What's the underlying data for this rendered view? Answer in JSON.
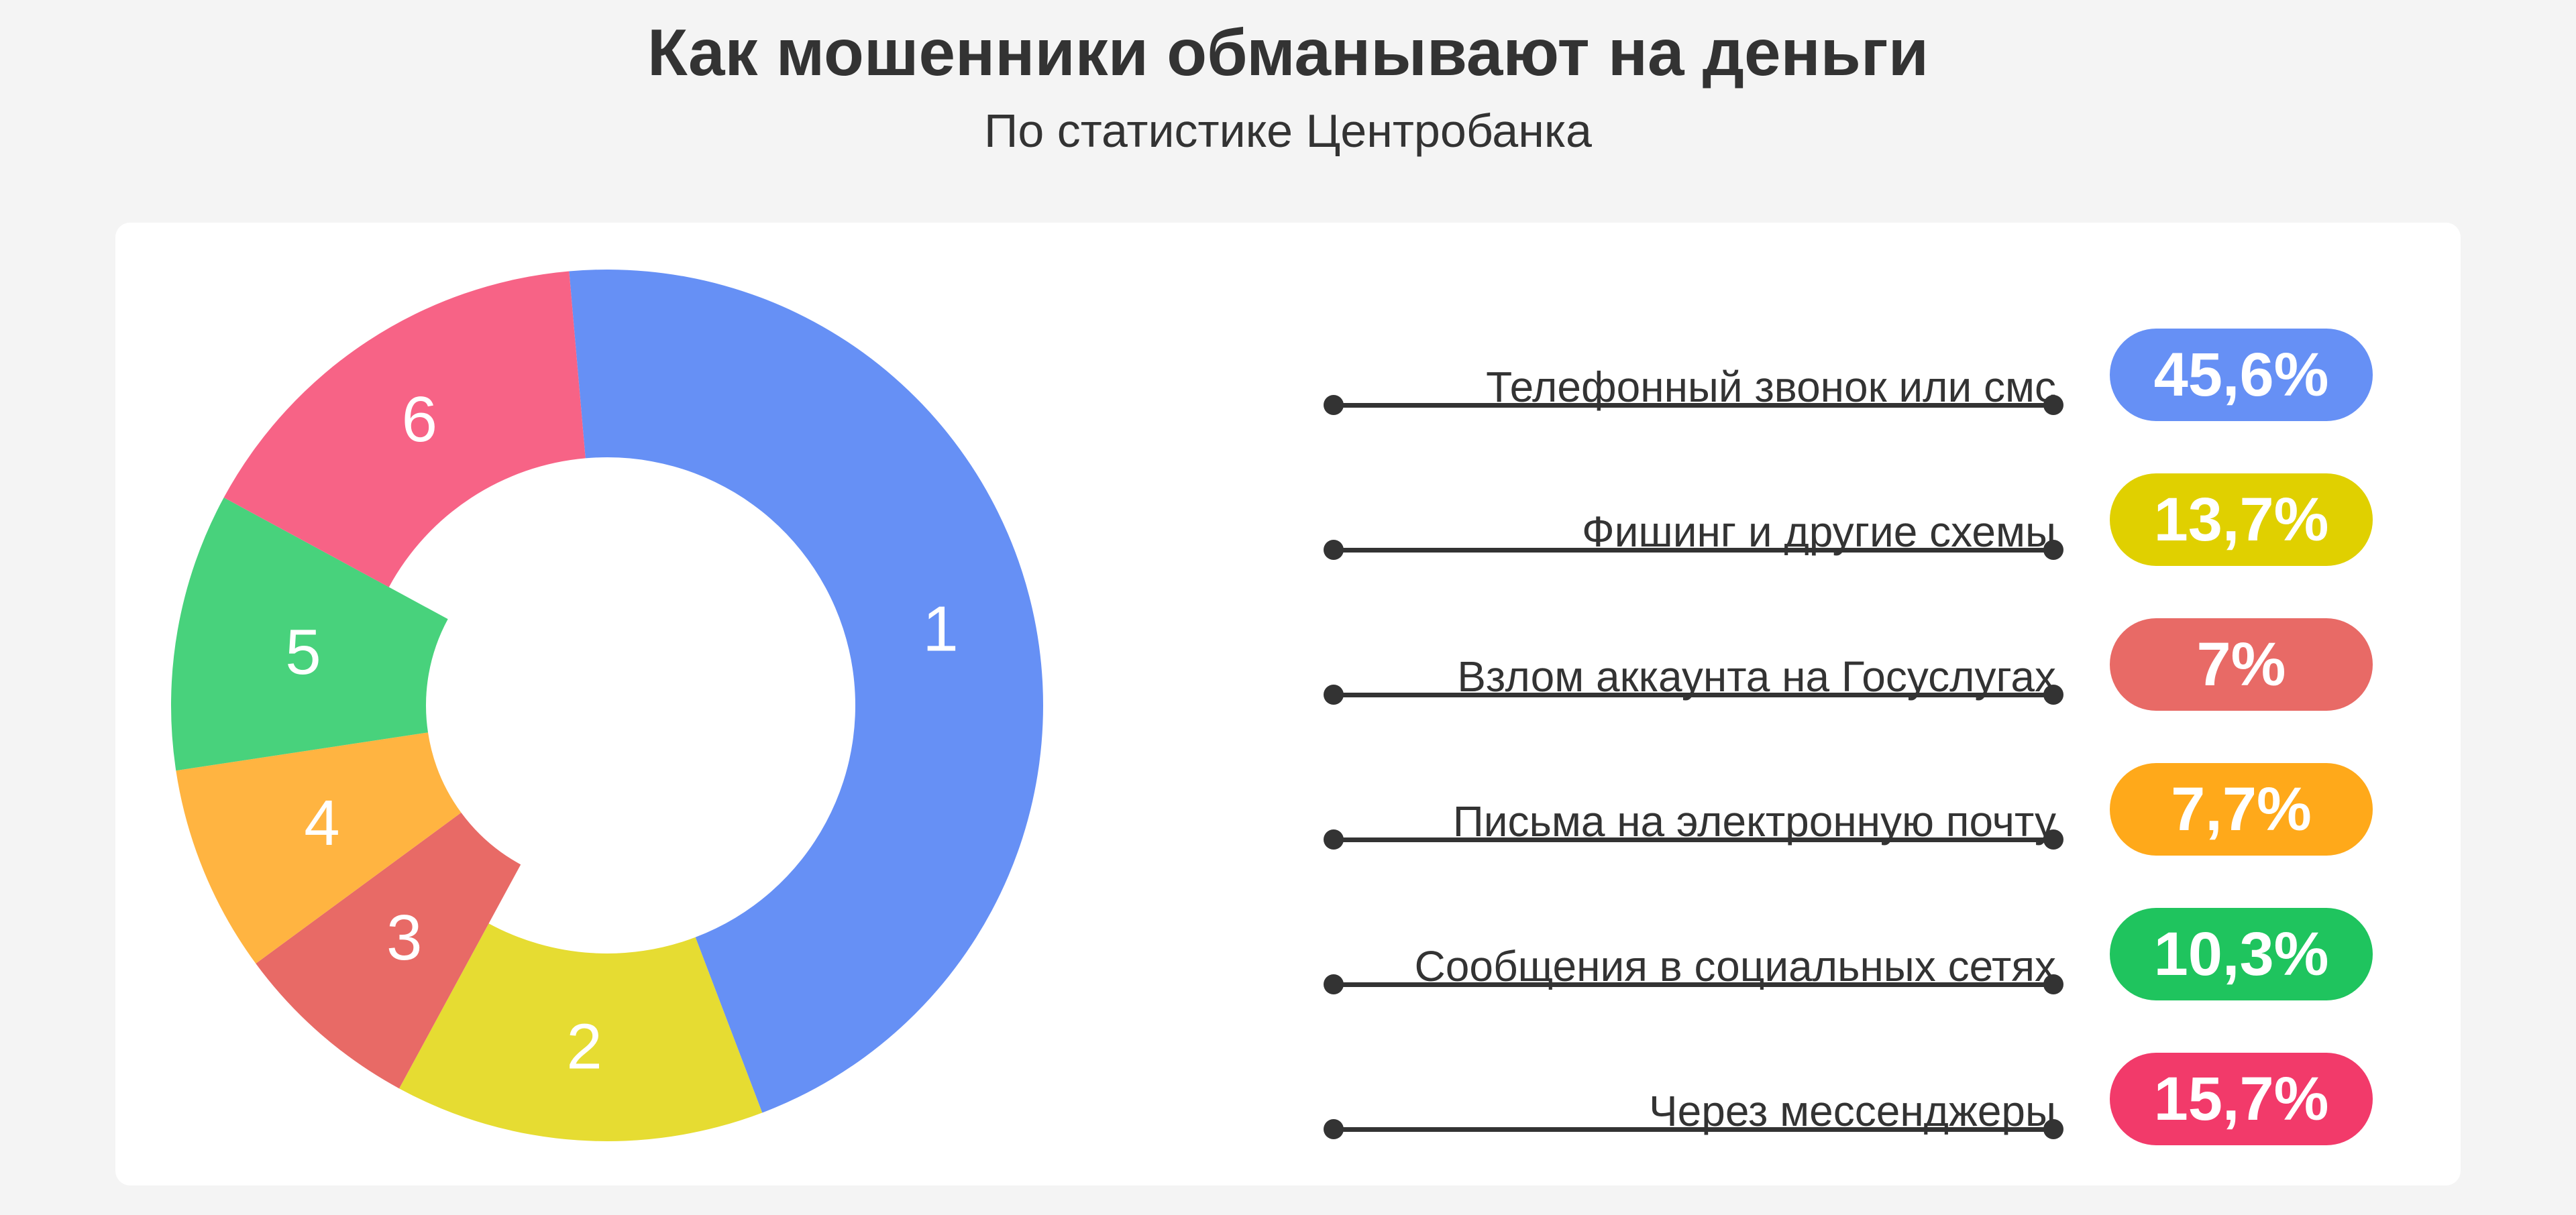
{
  "title": "Как мошенники обманывают на деньги",
  "subtitle": "По статистике Центробанка",
  "chart_data": {
    "type": "pie",
    "title": "Как мошенники обманывают на деньги",
    "subtitle": "По статистике Центробанка",
    "slices": [
      {
        "label": "Телефонный звонок или смс",
        "number": "1",
        "value": 45.6,
        "value_label": "45,6%",
        "color": "#6690f5"
      },
      {
        "label": "Фишинг и другие схемы",
        "number": "2",
        "value": 13.7,
        "value_label": "13,7%",
        "color": "#e6dc32"
      },
      {
        "label": "Взлом аккаунта на Госуслугах",
        "number": "3",
        "value": 7.0,
        "value_label": "7%",
        "color": "#e86a66"
      },
      {
        "label": "Письма на электронную почту",
        "number": "4",
        "value": 7.7,
        "value_label": "7,7%",
        "color": "#ffb441"
      },
      {
        "label": "Сообщения в социальных сетях",
        "number": "5",
        "value": 10.3,
        "value_label": "10,3%",
        "color": "#48d27c"
      },
      {
        "label": "Через мессенджеры",
        "number": "6",
        "value": 15.7,
        "value_label": "15,7%",
        "color": "#f76386"
      }
    ],
    "legend_placement": "right"
  },
  "badge_colors": [
    "#6690f5",
    "#e0d000",
    "#e86a66",
    "#ffa91a",
    "#1fc45e",
    "#f23a6a"
  ]
}
